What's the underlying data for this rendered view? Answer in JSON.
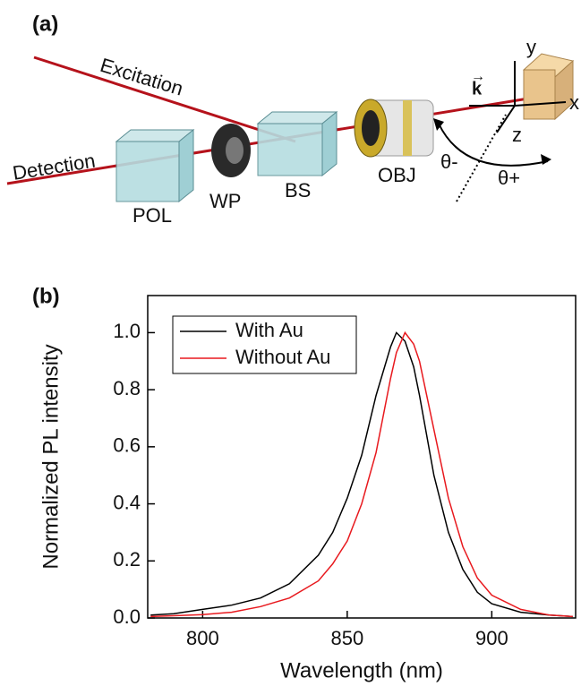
{
  "panel_a": {
    "label": "(a)",
    "excitation": "Excitation",
    "detection": "Detection",
    "pol": "POL",
    "wp": "WP",
    "bs": "BS",
    "obj": "OBJ",
    "theta_minus": "θ-",
    "theta_plus": "θ+",
    "axis_x": "x",
    "axis_y": "y",
    "axis_z": "z",
    "k": "k"
  },
  "chart_data": {
    "type": "line",
    "panel_label": "(b)",
    "xlabel": "Wavelength (nm)",
    "ylabel": "Normalized PL intensity",
    "x": [
      782,
      790,
      800,
      810,
      820,
      830,
      840,
      845,
      850,
      855,
      860,
      865,
      867,
      870,
      873,
      875,
      880,
      885,
      890,
      895,
      900,
      910,
      920,
      928
    ],
    "series": [
      {
        "name": "With Au",
        "color": "#000000",
        "values": [
          0.01,
          0.015,
          0.03,
          0.045,
          0.07,
          0.12,
          0.22,
          0.3,
          0.42,
          0.57,
          0.78,
          0.95,
          1.0,
          0.97,
          0.88,
          0.78,
          0.5,
          0.3,
          0.17,
          0.09,
          0.05,
          0.02,
          0.01,
          0.005
        ]
      },
      {
        "name": "Without Au",
        "color": "#e8191e",
        "values": [
          0.005,
          0.008,
          0.012,
          0.02,
          0.04,
          0.07,
          0.13,
          0.19,
          0.27,
          0.4,
          0.58,
          0.84,
          0.93,
          1.0,
          0.96,
          0.9,
          0.66,
          0.42,
          0.25,
          0.14,
          0.08,
          0.03,
          0.01,
          0.005
        ]
      }
    ],
    "xlim": [
      781,
      929
    ],
    "xticks": [
      800,
      850,
      900
    ],
    "ylim": [
      0,
      1.13
    ],
    "yticks": [
      {
        "value": 0,
        "label": "0.0"
      },
      0.2,
      0.4,
      0.6,
      0.8,
      {
        "value": 1,
        "label": "1.0"
      }
    ],
    "legend": "upper left"
  }
}
